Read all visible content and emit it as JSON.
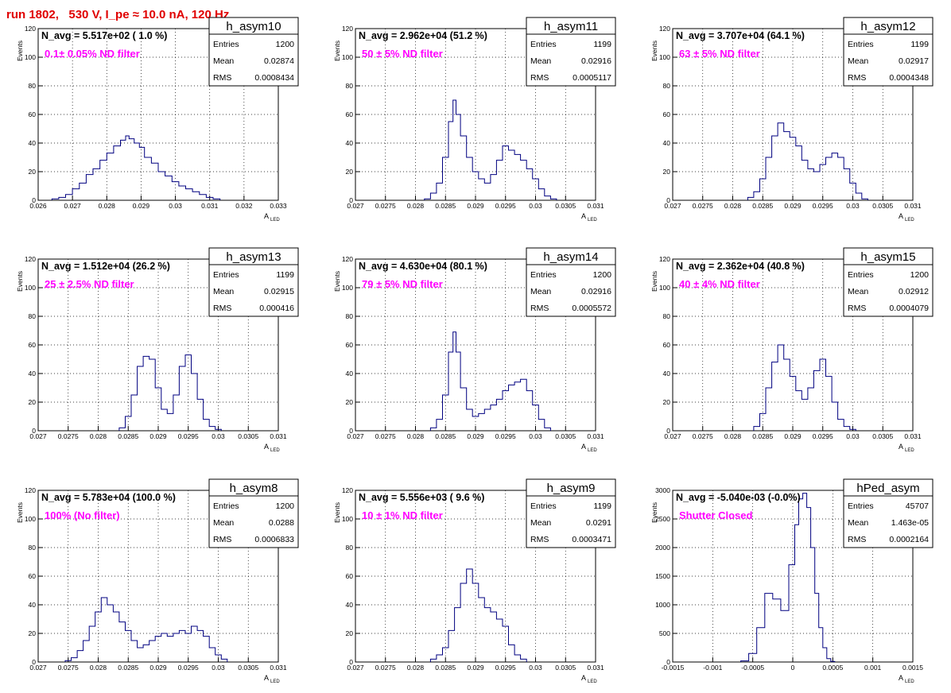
{
  "canvas_title": "run 1802,   530 V, I_pe ≈ 10.0 nA, 120 Hz",
  "colors": {
    "title": "#e00000",
    "filter_label": "#ff00ff",
    "histogram": "#000080",
    "grid": "#000000"
  },
  "stats_labels": {
    "entries": "Entries",
    "mean": "Mean",
    "rms": "RMS"
  },
  "chart_data": [
    {
      "type": "histogram",
      "name": "h_asym10",
      "navg": "N_avg = 5.517e+02 ( 1.0 %)",
      "filter": "0.1± 0.05% ND filter",
      "entries": "1200",
      "mean": "0.02874",
      "rms": "0.0008434",
      "xlabel": "A",
      "xlabel_sub": "LED",
      "ylabel": "Events",
      "xlim": [
        0.026,
        0.033
      ],
      "ylim": [
        0,
        120
      ],
      "grid": true,
      "xticks": [
        0.026,
        0.027,
        0.028,
        0.029,
        0.03,
        0.031,
        0.032,
        0.033
      ],
      "xticklabels": [
        "0.026",
        "0.027",
        "0.028",
        "0.029",
        "0.03",
        "0.031",
        "0.032",
        "0.033"
      ],
      "yticks": [
        0,
        20,
        40,
        60,
        80,
        100,
        120
      ],
      "yticklabels": [
        "0",
        "20",
        "40",
        "60",
        "80",
        "100",
        "120"
      ],
      "points": [
        [
          0.0265,
          1
        ],
        [
          0.0267,
          2
        ],
        [
          0.0269,
          4
        ],
        [
          0.0271,
          8
        ],
        [
          0.0273,
          12
        ],
        [
          0.0275,
          18
        ],
        [
          0.0277,
          22
        ],
        [
          0.0279,
          28
        ],
        [
          0.0281,
          33
        ],
        [
          0.0283,
          38
        ],
        [
          0.0285,
          42
        ],
        [
          0.0286,
          45
        ],
        [
          0.0287,
          43
        ],
        [
          0.0289,
          40
        ],
        [
          0.029,
          37
        ],
        [
          0.0292,
          30
        ],
        [
          0.0294,
          26
        ],
        [
          0.0296,
          20
        ],
        [
          0.0298,
          17
        ],
        [
          0.03,
          13
        ],
        [
          0.0302,
          10
        ],
        [
          0.0304,
          8
        ],
        [
          0.0306,
          6
        ],
        [
          0.0308,
          4
        ],
        [
          0.031,
          2
        ],
        [
          0.0312,
          1
        ]
      ]
    },
    {
      "type": "histogram",
      "name": "h_asym11",
      "navg": "N_avg = 2.962e+04 (51.2 %)",
      "filter": "50 ± 5% ND filter",
      "entries": "1199",
      "mean": "0.02916",
      "rms": "0.0005117",
      "xlabel": "A",
      "xlabel_sub": "LED",
      "ylabel": "Events",
      "xlim": [
        0.027,
        0.031
      ],
      "ylim": [
        0,
        120
      ],
      "grid": true,
      "xticks": [
        0.027,
        0.0275,
        0.028,
        0.0285,
        0.029,
        0.0295,
        0.03,
        0.0305,
        0.031
      ],
      "xticklabels": [
        "0.027",
        "0.0275",
        "0.028",
        "0.0285",
        "0.029",
        "0.0295",
        "0.03",
        "0.0305",
        "0.031"
      ],
      "yticks": [
        0,
        20,
        40,
        60,
        80,
        100,
        120
      ],
      "yticklabels": [
        "0",
        "20",
        "40",
        "60",
        "80",
        "100",
        "120"
      ],
      "points": [
        [
          0.0282,
          1
        ],
        [
          0.0283,
          5
        ],
        [
          0.0284,
          12
        ],
        [
          0.0285,
          30
        ],
        [
          0.0286,
          55
        ],
        [
          0.02865,
          70
        ],
        [
          0.0287,
          60
        ],
        [
          0.0288,
          45
        ],
        [
          0.0289,
          30
        ],
        [
          0.029,
          20
        ],
        [
          0.0291,
          15
        ],
        [
          0.0292,
          12
        ],
        [
          0.0293,
          18
        ],
        [
          0.0294,
          28
        ],
        [
          0.0295,
          38
        ],
        [
          0.0296,
          35
        ],
        [
          0.0297,
          32
        ],
        [
          0.0298,
          28
        ],
        [
          0.0299,
          22
        ],
        [
          0.03,
          15
        ],
        [
          0.0301,
          8
        ],
        [
          0.0302,
          3
        ],
        [
          0.0303,
          1
        ]
      ]
    },
    {
      "type": "histogram",
      "name": "h_asym12",
      "navg": "N_avg = 3.707e+04 (64.1 %)",
      "filter": "63 ± 5% ND filter",
      "entries": "1199",
      "mean": "0.02917",
      "rms": "0.0004348",
      "xlabel": "A",
      "xlabel_sub": "LED",
      "ylabel": "Events",
      "xlim": [
        0.027,
        0.031
      ],
      "ylim": [
        0,
        120
      ],
      "grid": true,
      "xticks": [
        0.027,
        0.0275,
        0.028,
        0.0285,
        0.029,
        0.0295,
        0.03,
        0.0305,
        0.031
      ],
      "xticklabels": [
        "0.027",
        "0.0275",
        "0.028",
        "0.0285",
        "0.029",
        "0.0295",
        "0.03",
        "0.0305",
        "0.031"
      ],
      "yticks": [
        0,
        20,
        40,
        60,
        80,
        100,
        120
      ],
      "yticklabels": [
        "0",
        "20",
        "40",
        "60",
        "80",
        "100",
        "120"
      ],
      "points": [
        [
          0.0283,
          2
        ],
        [
          0.0284,
          6
        ],
        [
          0.0285,
          15
        ],
        [
          0.0286,
          30
        ],
        [
          0.0287,
          45
        ],
        [
          0.0288,
          54
        ],
        [
          0.0289,
          48
        ],
        [
          0.029,
          44
        ],
        [
          0.0291,
          38
        ],
        [
          0.0292,
          28
        ],
        [
          0.0293,
          22
        ],
        [
          0.0294,
          20
        ],
        [
          0.0295,
          25
        ],
        [
          0.0296,
          30
        ],
        [
          0.0297,
          33
        ],
        [
          0.0298,
          30
        ],
        [
          0.0299,
          22
        ],
        [
          0.03,
          12
        ],
        [
          0.0301,
          5
        ],
        [
          0.0302,
          1
        ]
      ]
    },
    {
      "type": "histogram",
      "name": "h_asym13",
      "navg": "N_avg = 1.512e+04 (26.2 %)",
      "filter": "25 ± 2.5% ND filter",
      "entries": "1199",
      "mean": "0.02915",
      "rms": "0.000416",
      "xlabel": "A",
      "xlabel_sub": "LED",
      "ylabel": "Events",
      "xlim": [
        0.027,
        0.031
      ],
      "ylim": [
        0,
        120
      ],
      "grid": true,
      "xticks": [
        0.027,
        0.0275,
        0.028,
        0.0285,
        0.029,
        0.0295,
        0.03,
        0.0305,
        0.031
      ],
      "xticklabels": [
        "0.027",
        "0.0275",
        "0.028",
        "0.0285",
        "0.029",
        "0.0295",
        "0.03",
        "0.0305",
        "0.031"
      ],
      "yticks": [
        0,
        20,
        40,
        60,
        80,
        100,
        120
      ],
      "yticklabels": [
        "0",
        "20",
        "40",
        "60",
        "80",
        "100",
        "120"
      ],
      "points": [
        [
          0.0284,
          2
        ],
        [
          0.0285,
          10
        ],
        [
          0.0286,
          25
        ],
        [
          0.0287,
          45
        ],
        [
          0.0288,
          52
        ],
        [
          0.0289,
          50
        ],
        [
          0.029,
          30
        ],
        [
          0.0291,
          15
        ],
        [
          0.0292,
          12
        ],
        [
          0.0293,
          25
        ],
        [
          0.0294,
          45
        ],
        [
          0.0295,
          53
        ],
        [
          0.0296,
          40
        ],
        [
          0.0297,
          22
        ],
        [
          0.0298,
          8
        ],
        [
          0.0299,
          3
        ],
        [
          0.03,
          1
        ]
      ]
    },
    {
      "type": "histogram",
      "name": "h_asym14",
      "navg": "N_avg = 4.630e+04 (80.1 %)",
      "filter": "79 ± 5% ND filter",
      "entries": "1200",
      "mean": "0.02916",
      "rms": "0.0005572",
      "xlabel": "A",
      "xlabel_sub": "LED",
      "ylabel": "Events",
      "xlim": [
        0.027,
        0.031
      ],
      "ylim": [
        0,
        120
      ],
      "grid": true,
      "xticks": [
        0.027,
        0.0275,
        0.028,
        0.0285,
        0.029,
        0.0295,
        0.03,
        0.0305,
        0.031
      ],
      "xticklabels": [
        "0.027",
        "0.0275",
        "0.028",
        "0.0285",
        "0.029",
        "0.0295",
        "0.03",
        "0.0305",
        "0.031"
      ],
      "yticks": [
        0,
        20,
        40,
        60,
        80,
        100,
        120
      ],
      "yticklabels": [
        "0",
        "20",
        "40",
        "60",
        "80",
        "100",
        "120"
      ],
      "points": [
        [
          0.0283,
          2
        ],
        [
          0.0284,
          8
        ],
        [
          0.0285,
          25
        ],
        [
          0.0286,
          55
        ],
        [
          0.02865,
          69
        ],
        [
          0.0287,
          55
        ],
        [
          0.0288,
          30
        ],
        [
          0.0289,
          15
        ],
        [
          0.029,
          10
        ],
        [
          0.0291,
          12
        ],
        [
          0.0292,
          15
        ],
        [
          0.0293,
          18
        ],
        [
          0.0294,
          22
        ],
        [
          0.0295,
          28
        ],
        [
          0.0296,
          32
        ],
        [
          0.0297,
          34
        ],
        [
          0.0298,
          36
        ],
        [
          0.0299,
          28
        ],
        [
          0.03,
          18
        ],
        [
          0.0301,
          8
        ],
        [
          0.0302,
          2
        ]
      ]
    },
    {
      "type": "histogram",
      "name": "h_asym15",
      "navg": "N_avg = 2.362e+04 (40.8 %)",
      "filter": "40 ± 4% ND filter",
      "entries": "1200",
      "mean": "0.02912",
      "rms": "0.0004079",
      "xlabel": "A",
      "xlabel_sub": "LED",
      "ylabel": "Events",
      "xlim": [
        0.027,
        0.031
      ],
      "ylim": [
        0,
        120
      ],
      "grid": true,
      "xticks": [
        0.027,
        0.0275,
        0.028,
        0.0285,
        0.029,
        0.0295,
        0.03,
        0.0305,
        0.031
      ],
      "xticklabels": [
        "0.027",
        "0.0275",
        "0.028",
        "0.0285",
        "0.029",
        "0.0295",
        "0.03",
        "0.0305",
        "0.031"
      ],
      "yticks": [
        0,
        20,
        40,
        60,
        80,
        100,
        120
      ],
      "yticklabels": [
        "0",
        "20",
        "40",
        "60",
        "80",
        "100",
        "120"
      ],
      "points": [
        [
          0.0284,
          3
        ],
        [
          0.0285,
          12
        ],
        [
          0.0286,
          30
        ],
        [
          0.0287,
          48
        ],
        [
          0.0288,
          60
        ],
        [
          0.0289,
          50
        ],
        [
          0.029,
          38
        ],
        [
          0.0291,
          28
        ],
        [
          0.0292,
          22
        ],
        [
          0.0293,
          30
        ],
        [
          0.0294,
          42
        ],
        [
          0.0295,
          50
        ],
        [
          0.0296,
          38
        ],
        [
          0.0297,
          20
        ],
        [
          0.0298,
          8
        ],
        [
          0.0299,
          3
        ],
        [
          0.03,
          1
        ]
      ]
    },
    {
      "type": "histogram",
      "name": "h_asym8",
      "navg": "N_avg = 5.783e+04 (100.0 %)",
      "filter": "100% (No filter)",
      "entries": "1200",
      "mean": "0.0288",
      "rms": "0.0006833",
      "xlabel": "A",
      "xlabel_sub": "LED",
      "ylabel": "Events",
      "xlim": [
        0.027,
        0.031
      ],
      "ylim": [
        0,
        120
      ],
      "grid": true,
      "xticks": [
        0.027,
        0.0275,
        0.028,
        0.0285,
        0.029,
        0.0295,
        0.03,
        0.0305,
        0.031
      ],
      "xticklabels": [
        "0.027",
        "0.0275",
        "0.028",
        "0.0285",
        "0.029",
        "0.0295",
        "0.03",
        "0.0305",
        "0.031"
      ],
      "yticks": [
        0,
        20,
        40,
        60,
        80,
        100,
        120
      ],
      "yticklabels": [
        "0",
        "20",
        "40",
        "60",
        "80",
        "100",
        "120"
      ],
      "points": [
        [
          0.0275,
          1
        ],
        [
          0.0276,
          3
        ],
        [
          0.0277,
          8
        ],
        [
          0.0278,
          15
        ],
        [
          0.0279,
          25
        ],
        [
          0.028,
          35
        ],
        [
          0.0281,
          45
        ],
        [
          0.0282,
          40
        ],
        [
          0.0283,
          35
        ],
        [
          0.0284,
          28
        ],
        [
          0.0285,
          22
        ],
        [
          0.0286,
          15
        ],
        [
          0.0287,
          10
        ],
        [
          0.0288,
          12
        ],
        [
          0.0289,
          15
        ],
        [
          0.029,
          18
        ],
        [
          0.0291,
          20
        ],
        [
          0.0292,
          18
        ],
        [
          0.0293,
          20
        ],
        [
          0.0294,
          22
        ],
        [
          0.0295,
          20
        ],
        [
          0.0296,
          25
        ],
        [
          0.0297,
          22
        ],
        [
          0.0298,
          18
        ],
        [
          0.0299,
          10
        ],
        [
          0.03,
          5
        ],
        [
          0.0301,
          2
        ]
      ]
    },
    {
      "type": "histogram",
      "name": "h_asym9",
      "navg": "N_avg = 5.556e+03 ( 9.6 %)",
      "filter": "10 ± 1% ND filter",
      "entries": "1199",
      "mean": "0.0291",
      "rms": "0.0003471",
      "xlabel": "A",
      "xlabel_sub": "LED",
      "ylabel": "Events",
      "xlim": [
        0.027,
        0.031
      ],
      "ylim": [
        0,
        120
      ],
      "grid": true,
      "xticks": [
        0.027,
        0.0275,
        0.028,
        0.0285,
        0.029,
        0.0295,
        0.03,
        0.0305,
        0.031
      ],
      "xticklabels": [
        "0.027",
        "0.0275",
        "0.028",
        "0.0285",
        "0.029",
        "0.0295",
        "0.03",
        "0.0305",
        "0.031"
      ],
      "yticks": [
        0,
        20,
        40,
        60,
        80,
        100,
        120
      ],
      "yticklabels": [
        "0",
        "20",
        "40",
        "60",
        "80",
        "100",
        "120"
      ],
      "points": [
        [
          0.0283,
          2
        ],
        [
          0.0284,
          5
        ],
        [
          0.0285,
          10
        ],
        [
          0.0286,
          22
        ],
        [
          0.0287,
          38
        ],
        [
          0.0288,
          55
        ],
        [
          0.0289,
          65
        ],
        [
          0.029,
          55
        ],
        [
          0.0291,
          45
        ],
        [
          0.0292,
          38
        ],
        [
          0.0293,
          35
        ],
        [
          0.0294,
          30
        ],
        [
          0.0295,
          25
        ],
        [
          0.0296,
          12
        ],
        [
          0.0297,
          5
        ],
        [
          0.0298,
          2
        ]
      ]
    },
    {
      "type": "histogram",
      "name": "hPed_asym",
      "navg": "N_avg = -5.040e-03 (-0.0%)",
      "filter": "Shutter Closed",
      "entries": "45707",
      "mean": "1.463e-05",
      "rms": "0.0002164",
      "xlabel": "A",
      "xlabel_sub": "LED",
      "ylabel": "Events",
      "xlim": [
        -0.0015,
        0.0015
      ],
      "ylim": [
        0,
        3000
      ],
      "grid": true,
      "xticks": [
        -0.0015,
        -0.001,
        -0.0005,
        0,
        0.0005,
        0.001,
        0.0015
      ],
      "xticklabels": [
        "-0.0015",
        "-0.001",
        "-0.0005",
        "0",
        "0.0005",
        "0.001",
        "0.0015"
      ],
      "yticks": [
        0,
        500,
        1000,
        1500,
        2000,
        2500,
        3000
      ],
      "yticklabels": [
        "0",
        "500",
        "1000",
        "1500",
        "2000",
        "2500",
        "3000"
      ],
      "points": [
        [
          -0.0006,
          20
        ],
        [
          -0.0005,
          150
        ],
        [
          -0.0004,
          600
        ],
        [
          -0.0003,
          1200
        ],
        [
          -0.0002,
          1100
        ],
        [
          -0.0001,
          900
        ],
        [
          0.0,
          1700
        ],
        [
          5e-05,
          2400
        ],
        [
          0.0001,
          2850
        ],
        [
          0.00015,
          2950
        ],
        [
          0.0002,
          2700
        ],
        [
          0.00025,
          2000
        ],
        [
          0.0003,
          1200
        ],
        [
          0.00035,
          600
        ],
        [
          0.0004,
          250
        ],
        [
          0.00045,
          60
        ],
        [
          0.0005,
          10
        ]
      ]
    }
  ]
}
